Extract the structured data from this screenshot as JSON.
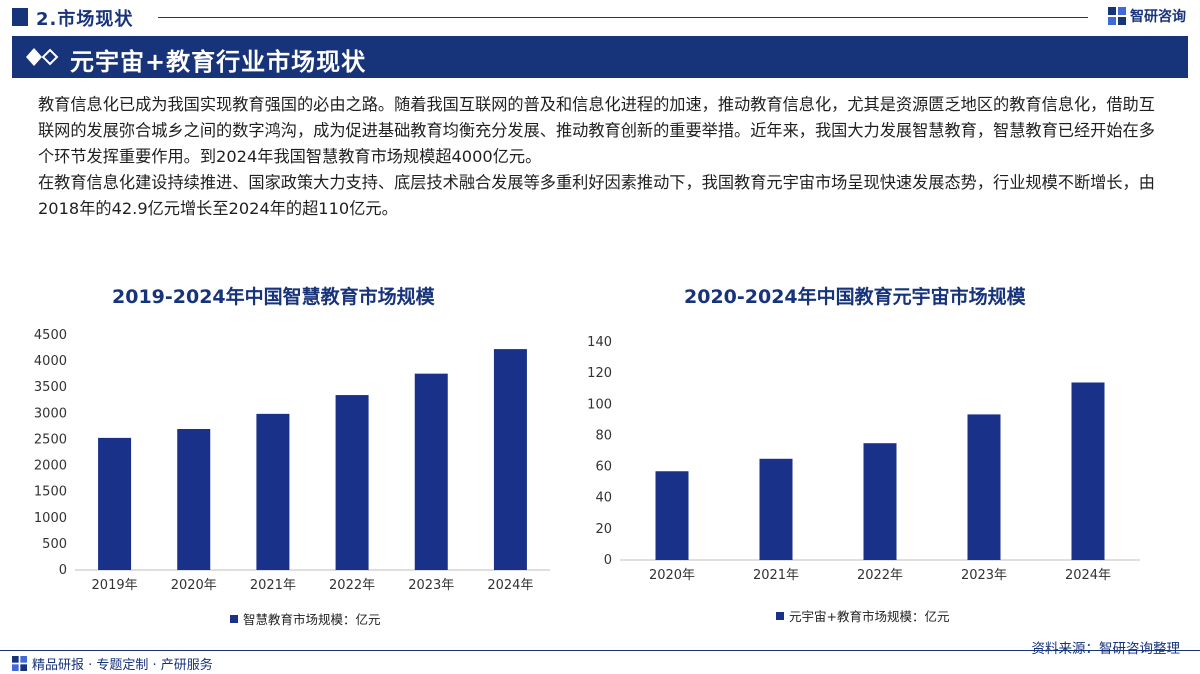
{
  "header": {
    "section_label": "2.市场现状",
    "brand_name": "智研咨询"
  },
  "banner": {
    "title": "元宇宙+教育行业市场现状"
  },
  "body": {
    "paragraph1": "教育信息化已成为我国实现教育强国的必由之路。随着我国互联网的普及和信息化进程的加速，推动教育信息化，尤其是资源匮乏地区的教育信息化，借助互联网的发展弥合城乡之间的数字鸿沟，成为促进基础教育均衡充分发展、推动教育创新的重要举措。近年来，我国大力发展智慧教育，智慧教育已经开始在多个环节发挥重要作用。到2024年我国智慧教育市场规模超4000亿元。",
    "paragraph2": "在教育信息化建设持续推进、国家政策大力支持、底层技术融合发展等多重利好因素推动下，我国教育元宇宙市场呈现快速发展态势，行业规模不断增长，由2018年的42.9亿元增长至2024年的超110亿元。"
  },
  "colors": {
    "brand_navy": "#17337a",
    "bar": "#1a3189"
  },
  "chart_data": [
    {
      "type": "bar",
      "title": "2019-2024年中国智慧教育市场规模",
      "categories": [
        "2019年",
        "2020年",
        "2021年",
        "2022年",
        "2023年",
        "2024年"
      ],
      "series": [
        {
          "name": "智慧教育市场规模：亿元",
          "values": [
            2530,
            2700,
            2990,
            3350,
            3760,
            4230
          ]
        }
      ],
      "ylim": [
        0,
        4500
      ],
      "yticks": [
        0,
        500,
        1000,
        1500,
        2000,
        2500,
        3000,
        3500,
        4000,
        4500
      ],
      "legend": "bottom",
      "grid": false
    },
    {
      "type": "bar",
      "title": "2020-2024年中国教育元宇宙市场规模",
      "categories": [
        "2020年",
        "2021年",
        "2022年",
        "2023年",
        "2024年"
      ],
      "series": [
        {
          "name": "元宇宙+教育市场规模：亿元",
          "values": [
            57,
            65,
            75,
            93.5,
            114
          ]
        }
      ],
      "ylim": [
        0,
        140
      ],
      "yticks": [
        0,
        20,
        40,
        60,
        80,
        100,
        120,
        140
      ],
      "legend": "bottom",
      "grid": false
    }
  ],
  "footer": {
    "source": "资料来源：智研咨询整理",
    "tagline": "精品研报 · 专题定制 · 产研服务"
  }
}
